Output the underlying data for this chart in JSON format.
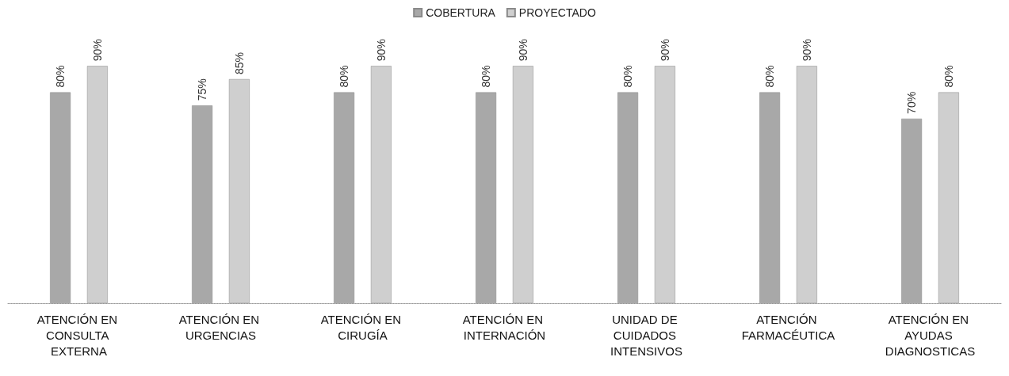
{
  "chart_data": {
    "type": "bar",
    "categories": [
      "ATENCIÓN EN CONSULTA EXTERNA",
      "ATENCIÓN EN URGENCIAS",
      "ATENCIÓN EN CIRUGÍA",
      "ATENCIÓN EN INTERNACIÓN",
      "UNIDAD DE CUIDADOS INTENSIVOS",
      "ATENCIÓN FARMACÉUTICA",
      "ATENCIÓN EN AYUDAS DIAGNOSTICAS"
    ],
    "series": [
      {
        "name": "COBERTURA",
        "color": "#a8a8a8",
        "values": [
          80,
          75,
          80,
          80,
          80,
          80,
          70
        ],
        "value_labels": [
          "80%",
          "75%",
          "80%",
          "80%",
          "80%",
          "80%",
          "70%"
        ]
      },
      {
        "name": "PROYECTADO",
        "color": "#cfcfcf",
        "values": [
          90,
          85,
          90,
          90,
          90,
          90,
          80
        ],
        "value_labels": [
          "90%",
          "85%",
          "90%",
          "90%",
          "90%",
          "90%",
          "80%"
        ]
      }
    ],
    "legend": "top"
  }
}
